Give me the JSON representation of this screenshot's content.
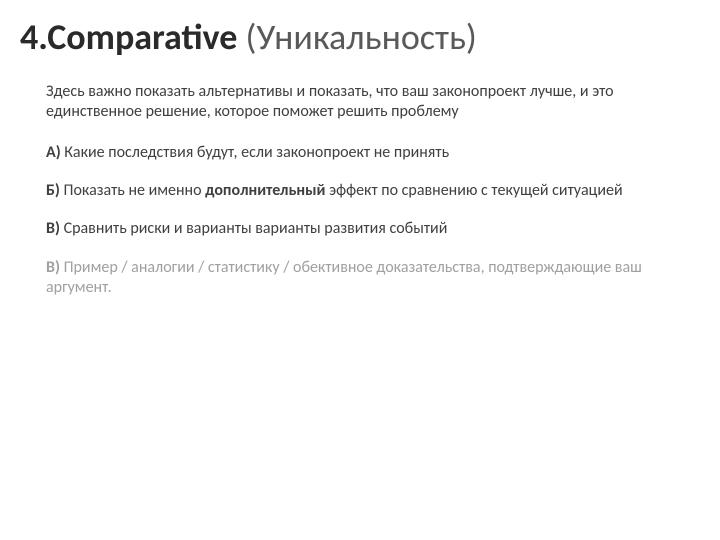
{
  "title": {
    "bold": "4.Comparative",
    "light": " (Уникальность)"
  },
  "intro": "Здесь важно показать альтернативы и показать, что ваш законопроект лучше, и это единственное решение, которое поможет решить проблему",
  "points": {
    "a_label": "А)",
    "a_text": " Какие последствия будут, если законопроект не принять",
    "b_label": "Б)",
    "b_text_pre": " Показать не именно ",
    "b_text_bold": "дополнительный",
    "b_text_post": " эффект по сравнению с текущей ситуацией",
    "v_label": "В)",
    "v_text": " Сравнить риски и варианты варианты развития событий",
    "v2_label": "В)",
    "v2_text": " Пример / аналогии / статистику / обективное доказательства, подтверждающие ваш аргумент."
  },
  "styling": {
    "background_color": "#ffffff",
    "title_bold_color": "#2a2a2a",
    "title_light_color": "#595959",
    "body_color": "#404040",
    "muted_color": "#a0a0a0",
    "title_fontsize": 36,
    "body_fontsize": 16,
    "font_family": "Calibri, Arial, sans-serif"
  }
}
